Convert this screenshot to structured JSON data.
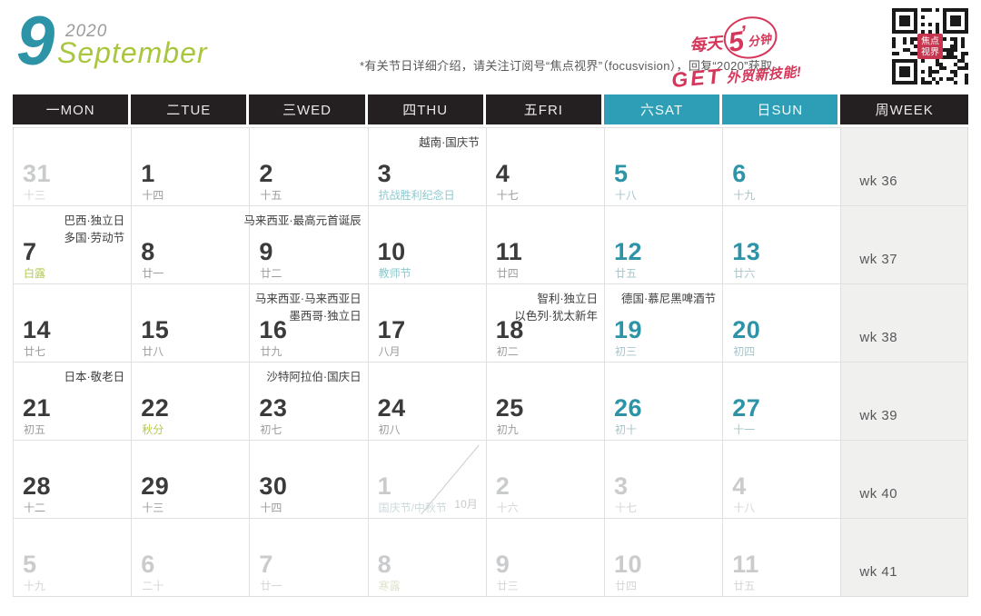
{
  "header": {
    "month_number": "9",
    "year": "2020",
    "month_name": "September",
    "note": "*有关节日详细介绍，请关注订阅号“焦点视界”（focusvision），回复“2020”获取。",
    "promo": {
      "line1_prefix": "每天",
      "line1_big": "5",
      "line1_suffix": "分钟",
      "line2_get": "GET",
      "line2_rest": "外贸新技能!"
    },
    "qr_center_line1": "焦点",
    "qr_center_line2": "视界"
  },
  "icons": {
    "qr_code": "qr-code-icon",
    "clock_tick": "clock-tick-icon"
  },
  "colors": {
    "teal_accent": "#2e9eb6",
    "teal_number": "#2d94a8",
    "green_term": "#b2ca4c",
    "light_teal_festival": "#8cc9cf",
    "promo_red": "#d5365a",
    "header_black": "#241f21",
    "week_col_bg": "#f0f0ef",
    "dim_gray": "#c9cbcd"
  },
  "weekdays": [
    {
      "label": "一MON",
      "accent": false
    },
    {
      "label": "二TUE",
      "accent": false
    },
    {
      "label": "三WED",
      "accent": false
    },
    {
      "label": "四THU",
      "accent": false
    },
    {
      "label": "五FRI",
      "accent": false
    },
    {
      "label": "六SAT",
      "accent": true
    },
    {
      "label": "日SUN",
      "accent": true
    },
    {
      "label": "周WEEK",
      "accent": false
    }
  ],
  "weeks": [
    {
      "week_label": "wk 36",
      "days": [
        {
          "day": "31",
          "lunar": "十三",
          "dim": true
        },
        {
          "day": "1",
          "lunar": "十四"
        },
        {
          "day": "2",
          "lunar": "十五"
        },
        {
          "day": "3",
          "lunar": "抗战胜利纪念日",
          "lunar_style": "teal",
          "holidays": [
            "越南·国庆节"
          ]
        },
        {
          "day": "4",
          "lunar": "十七"
        },
        {
          "day": "5",
          "lunar": "十八",
          "weekend": true
        },
        {
          "day": "6",
          "lunar": "十九",
          "weekend": true
        }
      ]
    },
    {
      "week_label": "wk 37",
      "days": [
        {
          "day": "7",
          "lunar": "白露",
          "lunar_style": "green",
          "holidays": [
            "巴西·独立日",
            "多国·劳动节"
          ]
        },
        {
          "day": "8",
          "lunar": "廿一"
        },
        {
          "day": "9",
          "lunar": "廿二",
          "holidays": [
            "马来西亚·最高元首诞辰"
          ]
        },
        {
          "day": "10",
          "lunar": "教师节",
          "lunar_style": "teal"
        },
        {
          "day": "11",
          "lunar": "廿四"
        },
        {
          "day": "12",
          "lunar": "廿五",
          "weekend": true
        },
        {
          "day": "13",
          "lunar": "廿六",
          "weekend": true
        }
      ]
    },
    {
      "week_label": "wk 38",
      "days": [
        {
          "day": "14",
          "lunar": "廿七"
        },
        {
          "day": "15",
          "lunar": "廿八"
        },
        {
          "day": "16",
          "lunar": "廿九",
          "holidays": [
            "马来西亚·马来西亚日",
            "墨西哥·独立日"
          ]
        },
        {
          "day": "17",
          "lunar": "八月"
        },
        {
          "day": "18",
          "lunar": "初二",
          "holidays": [
            "智利·独立日",
            "以色列·犹太新年"
          ]
        },
        {
          "day": "19",
          "lunar": "初三",
          "weekend": true,
          "holidays": [
            "德国·慕尼黑啤酒节"
          ]
        },
        {
          "day": "20",
          "lunar": "初四",
          "weekend": true
        }
      ]
    },
    {
      "week_label": "wk 39",
      "days": [
        {
          "day": "21",
          "lunar": "初五",
          "holidays": [
            "日本·敬老日"
          ]
        },
        {
          "day": "22",
          "lunar": "秋分",
          "lunar_style": "green"
        },
        {
          "day": "23",
          "lunar": "初七",
          "holidays": [
            "沙特阿拉伯·国庆日"
          ]
        },
        {
          "day": "24",
          "lunar": "初八"
        },
        {
          "day": "25",
          "lunar": "初九"
        },
        {
          "day": "26",
          "lunar": "初十",
          "weekend": true
        },
        {
          "day": "27",
          "lunar": "十一",
          "weekend": true
        }
      ]
    },
    {
      "week_label": "wk 40",
      "days": [
        {
          "day": "28",
          "lunar": "十二"
        },
        {
          "day": "29",
          "lunar": "十三"
        },
        {
          "day": "30",
          "lunar": "十四"
        },
        {
          "day": "1",
          "lunar": "国庆节/中秋节",
          "dim": true,
          "lunar_style": "dim-teal",
          "month_marker": "10月"
        },
        {
          "day": "2",
          "lunar": "十六",
          "dim": true
        },
        {
          "day": "3",
          "lunar": "十七",
          "dim": true,
          "weekend": true
        },
        {
          "day": "4",
          "lunar": "十八",
          "dim": true,
          "weekend": true
        }
      ]
    },
    {
      "week_label": "wk 41",
      "days": [
        {
          "day": "5",
          "lunar": "十九",
          "dim": true
        },
        {
          "day": "6",
          "lunar": "二十",
          "dim": true
        },
        {
          "day": "7",
          "lunar": "廿一",
          "dim": true
        },
        {
          "day": "8",
          "lunar": "寒露",
          "dim": true,
          "lunar_style": "dim-green"
        },
        {
          "day": "9",
          "lunar": "廿三",
          "dim": true
        },
        {
          "day": "10",
          "lunar": "廿四",
          "dim": true,
          "weekend": true
        },
        {
          "day": "11",
          "lunar": "廿五",
          "dim": true,
          "weekend": true
        }
      ]
    }
  ]
}
